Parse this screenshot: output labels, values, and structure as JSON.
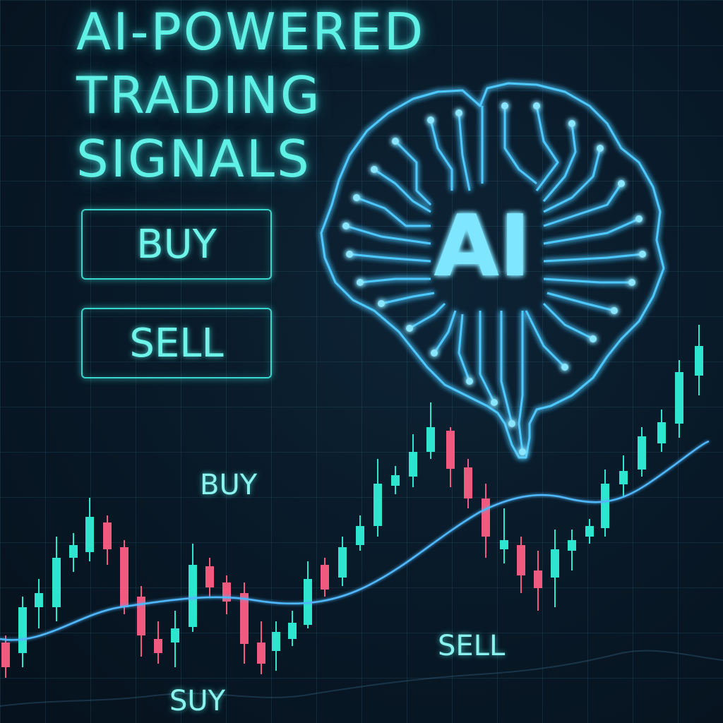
{
  "title_lines": [
    "AI-POWERED",
    "TRADING",
    "SIGNALS"
  ],
  "buttons": {
    "buy_label": "BUY",
    "sell_label": "SELL"
  },
  "brain": {
    "badge_text": "AI",
    "icon": "circuit-brain-icon"
  },
  "chart_labels": {
    "buy": "BUY",
    "sell": "SELL",
    "suy": "SUY"
  },
  "colors": {
    "accent": "#5ff0e6",
    "brain_glow": "#4ec9ff",
    "bull_candle": "#2ee6d0",
    "bear_candle": "#f05a7e",
    "trend_line": "#4fb8ff",
    "background": "#081826"
  }
}
